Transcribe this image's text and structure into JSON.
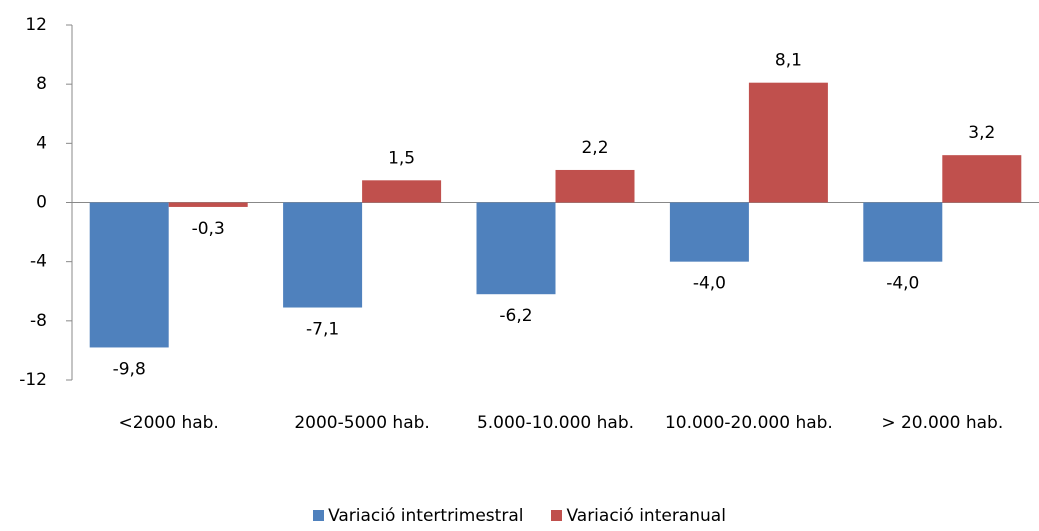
{
  "chart_data": {
    "type": "bar",
    "categories": [
      "<2000 hab.",
      "2000-5000 hab.",
      "5.000-10.000 hab.",
      "10.000-20.000 hab.",
      "> 20.000 hab."
    ],
    "series": [
      {
        "name": "Variació intertrimestral",
        "color": "#4f81bd",
        "values": [
          -9.8,
          -7.1,
          -6.2,
          -4.0,
          -4.0
        ],
        "value_labels": [
          "-9,8",
          "-7,1",
          "-6,2",
          "-4,0",
          "-4,0"
        ]
      },
      {
        "name": "Variació interanual",
        "color": "#c0504d",
        "values": [
          -0.3,
          1.5,
          2.2,
          8.1,
          3.2
        ],
        "value_labels": [
          "-0,3",
          "1,5",
          "2,2",
          "8,1",
          "3,2"
        ]
      }
    ],
    "ylim": [
      -12,
      12
    ],
    "yticks": [
      -12,
      -8,
      -4,
      0,
      4,
      8,
      12
    ],
    "grid": false,
    "legend": "bottom"
  }
}
